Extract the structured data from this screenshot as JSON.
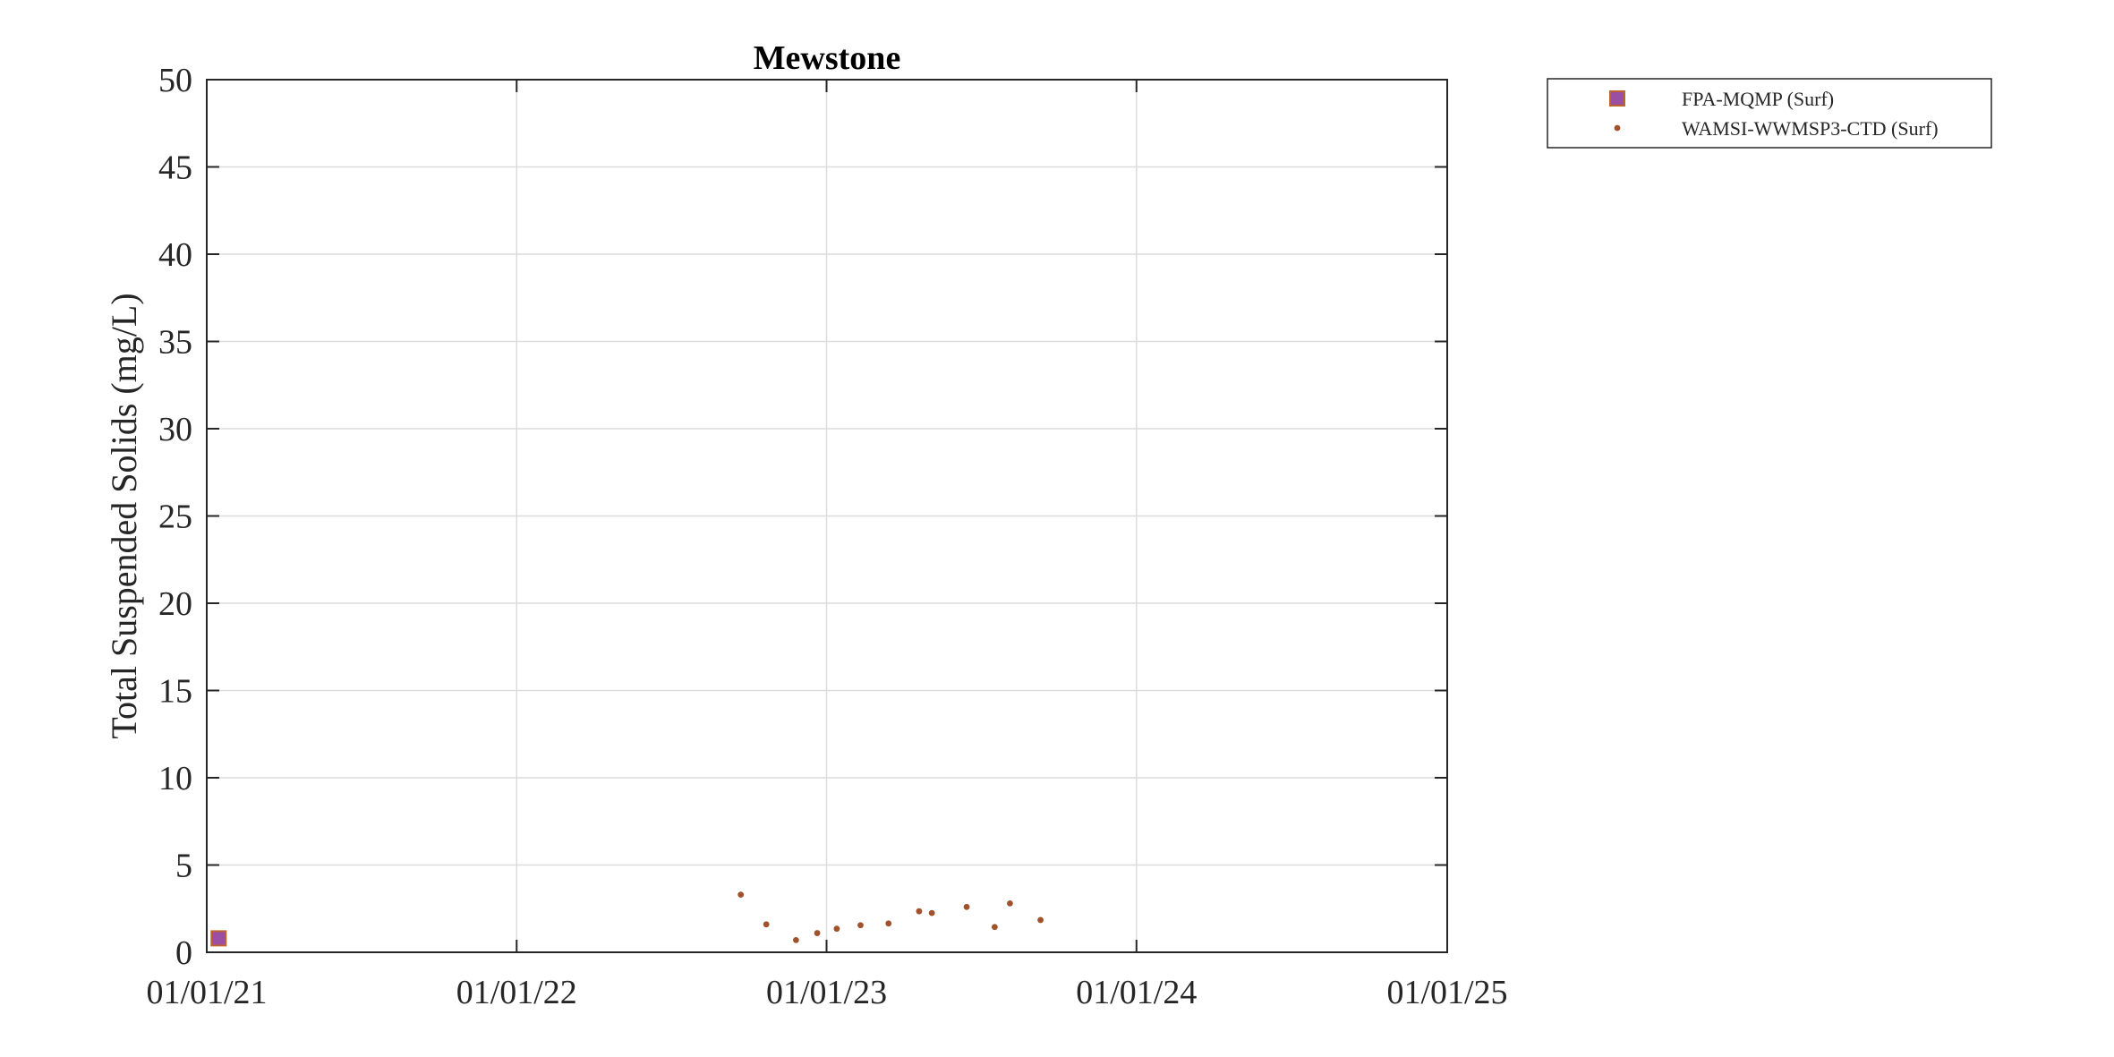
{
  "chart_data": {
    "type": "scatter",
    "title": "Mewstone",
    "xlabel": "",
    "ylabel": "Total Suspended Solids (mg/L)",
    "x_axis_type": "date",
    "xlim": [
      "2021-01-01",
      "2025-01-01"
    ],
    "xticks": [
      "2021-01-01",
      "2022-01-01",
      "2023-01-01",
      "2024-01-01",
      "2025-01-01"
    ],
    "xtick_labels": [
      "01/01/21",
      "01/01/22",
      "01/01/23",
      "01/01/24",
      "01/01/25"
    ],
    "ylim": [
      0,
      50
    ],
    "yticks": [
      0,
      5,
      10,
      15,
      20,
      25,
      30,
      35,
      40,
      45,
      50
    ],
    "ytick_labels": [
      "0",
      "5",
      "10",
      "15",
      "20",
      "25",
      "30",
      "35",
      "40",
      "45",
      "50"
    ],
    "grid": true,
    "legend_position": "outside-top-right",
    "series": [
      {
        "name": "FPA-MQMP (Surf)",
        "marker": "square",
        "color": "#9b4fa3",
        "edge_color": "#c0622c",
        "points": [
          {
            "x": "2021-01-15",
            "y": 0.8
          }
        ]
      },
      {
        "name": "WAMSI-WWMSP3-CTD (Surf)",
        "marker": "dot",
        "color": "#a0522d",
        "points": [
          {
            "x": "2022-09-22",
            "y": 3.3
          },
          {
            "x": "2022-10-22",
            "y": 1.6
          },
          {
            "x": "2022-11-26",
            "y": 0.7
          },
          {
            "x": "2022-12-21",
            "y": 1.1
          },
          {
            "x": "2023-01-13",
            "y": 1.35
          },
          {
            "x": "2023-02-10",
            "y": 1.55
          },
          {
            "x": "2023-03-15",
            "y": 1.65
          },
          {
            "x": "2023-04-20",
            "y": 2.35
          },
          {
            "x": "2023-05-05",
            "y": 2.25
          },
          {
            "x": "2023-06-15",
            "y": 2.6
          },
          {
            "x": "2023-07-18",
            "y": 1.45
          },
          {
            "x": "2023-08-05",
            "y": 2.8
          },
          {
            "x": "2023-09-10",
            "y": 1.85
          }
        ]
      }
    ]
  }
}
